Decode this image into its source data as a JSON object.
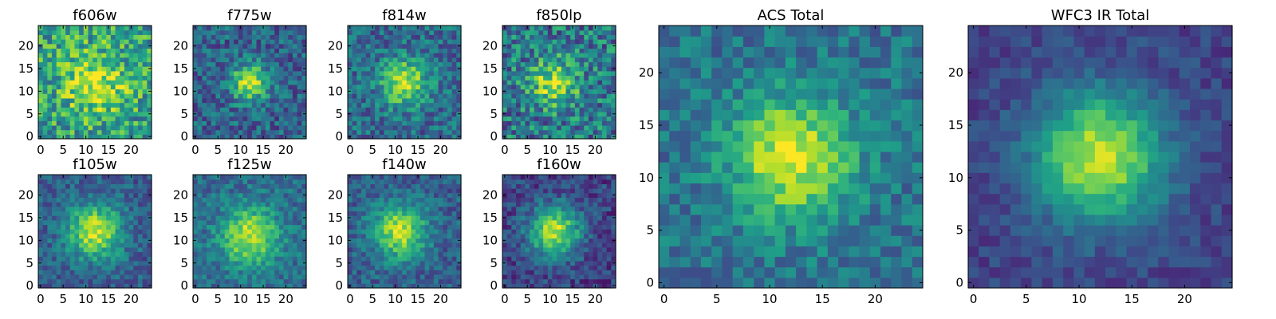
{
  "chart_data": [
    {
      "type": "heatmap",
      "title": "f606w",
      "peak": [
        12,
        12
      ],
      "sigma": 5.0,
      "amp": 0.38,
      "noise": 0.55,
      "seed": 11,
      "base": 0.55,
      "xticks": [
        0,
        5,
        10,
        15,
        20
      ],
      "yticks": [
        0,
        5,
        10,
        15,
        20
      ],
      "xlim": [
        -0.5,
        24.5
      ],
      "ylim": [
        -0.5,
        24.5
      ],
      "colormap": "viridis"
    },
    {
      "type": "heatmap",
      "title": "f775w",
      "peak": [
        12,
        12
      ],
      "sigma": 2.8,
      "amp": 0.62,
      "noise": 0.4,
      "seed": 23,
      "base": 0.32,
      "xticks": [
        0,
        5,
        10,
        15,
        20
      ],
      "yticks": [
        0,
        5,
        10,
        15,
        20
      ],
      "xlim": [
        -0.5,
        24.5
      ],
      "ylim": [
        -0.5,
        24.5
      ],
      "colormap": "viridis"
    },
    {
      "type": "heatmap",
      "title": "f814w",
      "peak": [
        12,
        12
      ],
      "sigma": 3.6,
      "amp": 0.55,
      "noise": 0.4,
      "seed": 37,
      "base": 0.35,
      "xticks": [
        0,
        5,
        10,
        15,
        20
      ],
      "yticks": [
        0,
        5,
        10,
        15,
        20
      ],
      "xlim": [
        -0.5,
        24.5
      ],
      "ylim": [
        -0.5,
        24.5
      ],
      "colormap": "viridis"
    },
    {
      "type": "heatmap",
      "title": "f850lp",
      "peak": [
        11,
        12
      ],
      "sigma": 3.6,
      "amp": 0.48,
      "noise": 0.55,
      "seed": 41,
      "base": 0.4,
      "xticks": [
        0,
        5,
        10,
        15,
        20
      ],
      "yticks": [
        0,
        5,
        10,
        15,
        20
      ],
      "xlim": [
        -0.5,
        24.5
      ],
      "ylim": [
        -0.5,
        24.5
      ],
      "colormap": "viridis"
    },
    {
      "type": "heatmap",
      "title": "f105w",
      "peak": [
        12,
        12
      ],
      "sigma": 4.2,
      "amp": 0.62,
      "noise": 0.3,
      "seed": 53,
      "base": 0.3,
      "xticks": [
        0,
        5,
        10,
        15,
        20
      ],
      "yticks": [
        0,
        5,
        10,
        15,
        20
      ],
      "xlim": [
        -0.5,
        24.5
      ],
      "ylim": [
        -0.5,
        24.5
      ],
      "colormap": "viridis"
    },
    {
      "type": "heatmap",
      "title": "f125w",
      "peak": [
        12,
        11
      ],
      "sigma": 4.5,
      "amp": 0.55,
      "noise": 0.3,
      "seed": 61,
      "base": 0.35,
      "xticks": [
        0,
        5,
        10,
        15,
        20
      ],
      "yticks": [
        0,
        5,
        10,
        15,
        20
      ],
      "xlim": [
        -0.5,
        24.5
      ],
      "ylim": [
        -0.5,
        24.5
      ],
      "colormap": "viridis"
    },
    {
      "type": "heatmap",
      "title": "f140w",
      "peak": [
        11,
        12
      ],
      "sigma": 4.2,
      "amp": 0.6,
      "noise": 0.3,
      "seed": 71,
      "base": 0.3,
      "xticks": [
        0,
        5,
        10,
        15,
        20
      ],
      "yticks": [
        0,
        5,
        10,
        15,
        20
      ],
      "xlim": [
        -0.5,
        24.5
      ],
      "ylim": [
        -0.5,
        24.5
      ],
      "colormap": "viridis"
    },
    {
      "type": "heatmap",
      "title": "f160w",
      "peak": [
        11,
        12
      ],
      "sigma": 4.0,
      "amp": 0.7,
      "noise": 0.3,
      "seed": 83,
      "base": 0.2,
      "xticks": [
        0,
        5,
        10,
        15,
        20
      ],
      "yticks": [
        0,
        5,
        10,
        15,
        20
      ],
      "xlim": [
        -0.5,
        24.5
      ],
      "ylim": [
        -0.5,
        24.5
      ],
      "colormap": "viridis"
    },
    {
      "type": "heatmap",
      "title": "ACS Total",
      "peak": [
        12,
        12
      ],
      "sigma": 4.0,
      "amp": 0.58,
      "noise": 0.3,
      "seed": 97,
      "base": 0.38,
      "xticks": [
        0,
        5,
        10,
        15,
        20
      ],
      "yticks": [
        0,
        5,
        10,
        15,
        20
      ],
      "xlim": [
        -0.5,
        24.5
      ],
      "ylim": [
        -0.5,
        24.5
      ],
      "colormap": "viridis"
    },
    {
      "type": "heatmap",
      "title": "WFC3 IR Total",
      "peak": [
        12,
        12
      ],
      "sigma": 4.3,
      "amp": 0.72,
      "noise": 0.18,
      "seed": 101,
      "base": 0.2,
      "xticks": [
        0,
        5,
        10,
        15,
        20
      ],
      "yticks": [
        0,
        5,
        10,
        15,
        20
      ],
      "xlim": [
        -0.5,
        24.5
      ],
      "ylim": [
        -0.5,
        24.5
      ],
      "colormap": "viridis"
    }
  ]
}
